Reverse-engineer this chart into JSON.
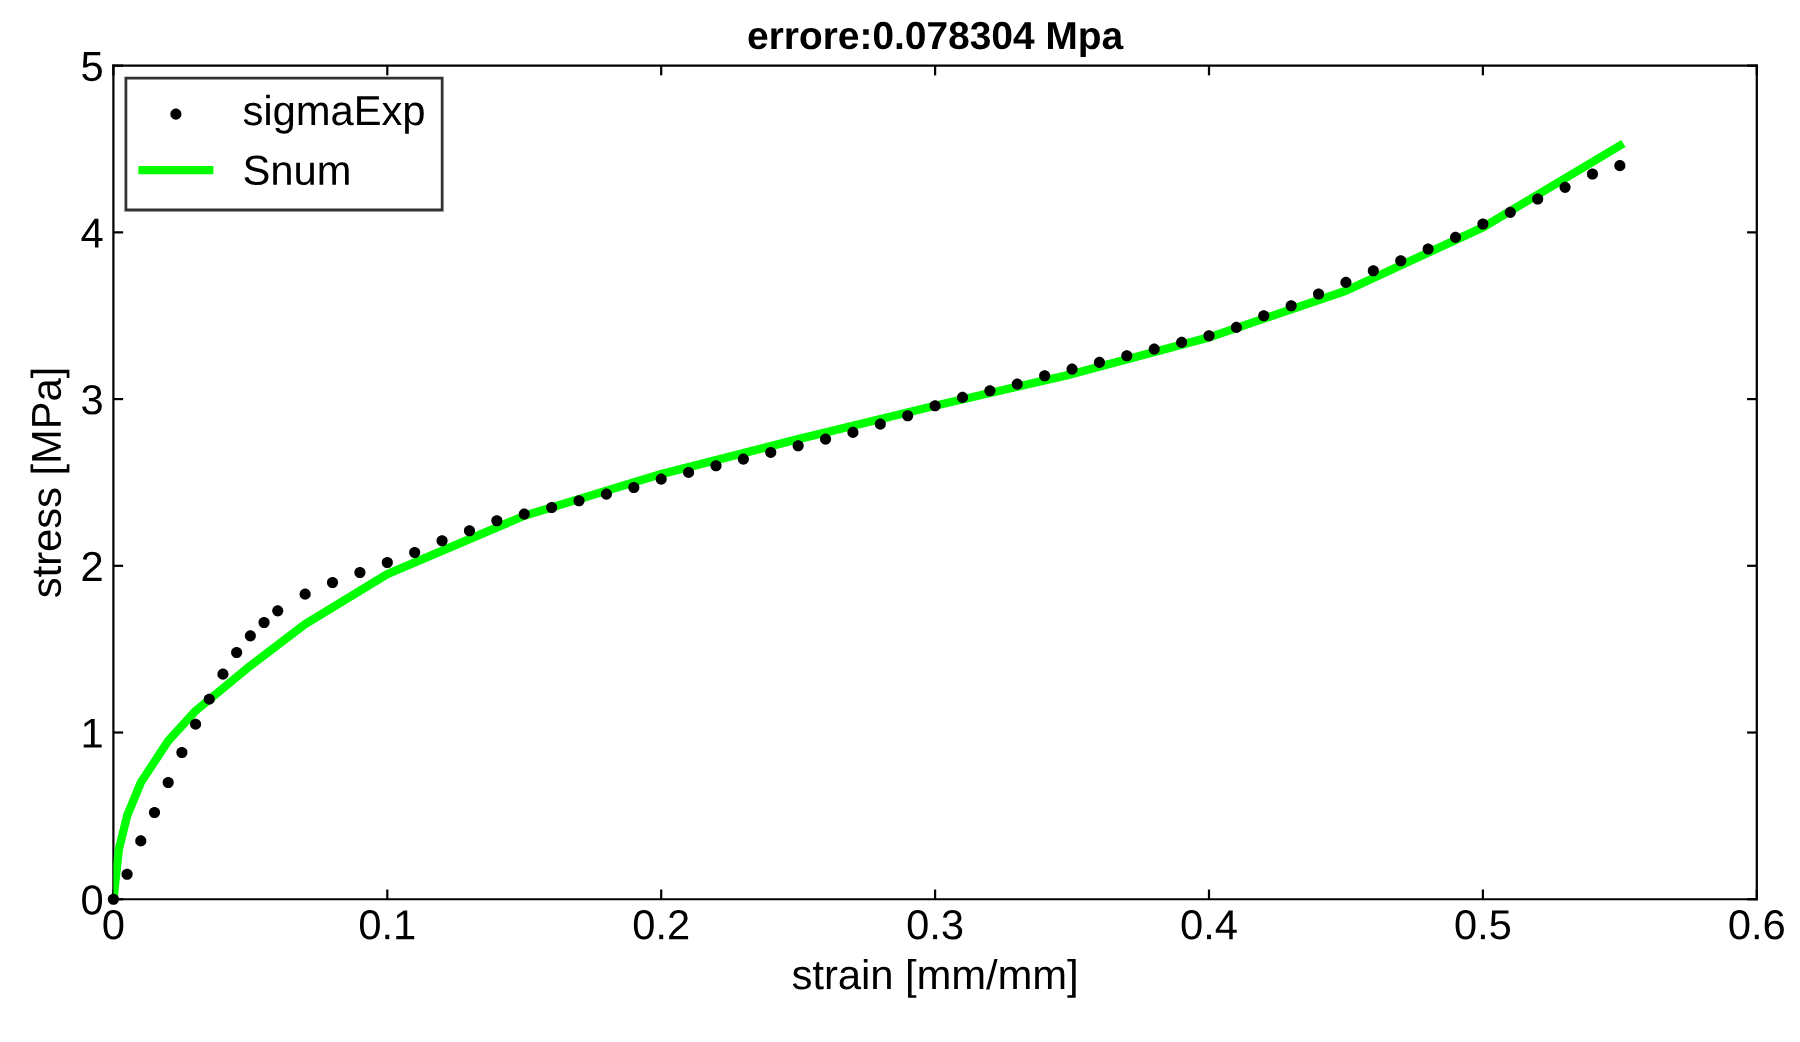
{
  "chart_data": {
    "type": "line",
    "title": "errore:0.078304 Mpa",
    "xlabel": "strain [mm/mm]",
    "ylabel": "stress [MPa]",
    "xlim": [
      0,
      0.6
    ],
    "ylim": [
      0,
      5
    ],
    "xticks": [
      0,
      0.1,
      0.2,
      0.3,
      0.4,
      0.5,
      0.6
    ],
    "yticks": [
      0,
      1,
      2,
      3,
      4,
      5
    ],
    "grid": false,
    "legend": "top left",
    "series": [
      {
        "name": "sigmaExp",
        "type": "scatter",
        "marker": "circle",
        "color": "#000000",
        "x": [
          0,
          0.005,
          0.01,
          0.015,
          0.02,
          0.025,
          0.03,
          0.035,
          0.04,
          0.045,
          0.05,
          0.055,
          0.06,
          0.07,
          0.08,
          0.09,
          0.1,
          0.11,
          0.12,
          0.13,
          0.14,
          0.15,
          0.16,
          0.17,
          0.18,
          0.19,
          0.2,
          0.21,
          0.22,
          0.23,
          0.24,
          0.25,
          0.26,
          0.27,
          0.28,
          0.29,
          0.3,
          0.31,
          0.32,
          0.33,
          0.34,
          0.35,
          0.36,
          0.37,
          0.38,
          0.39,
          0.4,
          0.41,
          0.42,
          0.43,
          0.44,
          0.45,
          0.46,
          0.47,
          0.48,
          0.49,
          0.5,
          0.51,
          0.52,
          0.53,
          0.54,
          0.55
        ],
        "values": [
          0,
          0.15,
          0.35,
          0.52,
          0.7,
          0.88,
          1.05,
          1.2,
          1.35,
          1.48,
          1.58,
          1.66,
          1.73,
          1.83,
          1.9,
          1.96,
          2.02,
          2.08,
          2.15,
          2.21,
          2.27,
          2.31,
          2.35,
          2.39,
          2.43,
          2.47,
          2.52,
          2.56,
          2.6,
          2.64,
          2.68,
          2.72,
          2.76,
          2.8,
          2.85,
          2.9,
          2.96,
          3.01,
          3.05,
          3.09,
          3.14,
          3.18,
          3.22,
          3.26,
          3.3,
          3.34,
          3.38,
          3.43,
          3.5,
          3.56,
          3.63,
          3.7,
          3.77,
          3.83,
          3.9,
          3.97,
          4.05,
          4.12,
          4.2,
          4.27,
          4.35,
          4.4
        ]
      },
      {
        "name": "Snum",
        "marker": "none",
        "line_style": "solid",
        "color": "#00ff00",
        "x": [
          0,
          0.002,
          0.005,
          0.01,
          0.02,
          0.03,
          0.05,
          0.07,
          0.1,
          0.15,
          0.2,
          0.25,
          0.3,
          0.35,
          0.4,
          0.45,
          0.5,
          0.55
        ],
        "values": [
          0,
          0.3,
          0.5,
          0.7,
          0.95,
          1.13,
          1.4,
          1.65,
          1.95,
          2.3,
          2.55,
          2.76,
          2.96,
          3.15,
          3.37,
          3.65,
          4.03,
          4.52
        ]
      }
    ]
  }
}
